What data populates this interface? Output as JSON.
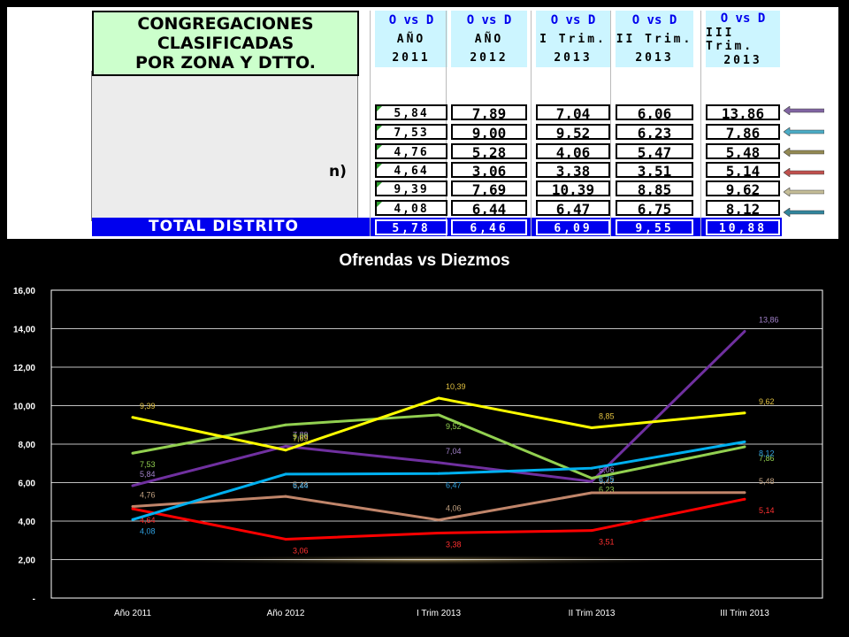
{
  "table": {
    "title_lines": [
      "CONGREGACIONES",
      "CLASIFICADAS",
      "POR ZONA Y DTTO."
    ],
    "row_label_fragment": "n)",
    "total_label": "TOTAL DISTRITO",
    "columns": [
      {
        "ovd": "O vs D",
        "line1": "AÑO",
        "line2": "2011"
      },
      {
        "ovd": "O vs D",
        "line1": "AÑO",
        "line2": "2012"
      },
      {
        "ovd": "O vs D",
        "line1": "I Trim.",
        "line2": "2013"
      },
      {
        "ovd": "O vs D",
        "line1": "II Trim.",
        "line2": "2013"
      },
      {
        "ovd": "O vs D",
        "line1": "III Trim.",
        "line2": "2013"
      }
    ],
    "rows": [
      [
        "5,84",
        "7,89",
        "7,04",
        "6,06",
        "13,86"
      ],
      [
        "7,53",
        "9,00",
        "9,52",
        "6,23",
        "7,86"
      ],
      [
        "4,76",
        "5,28",
        "4,06",
        "5,47",
        "5,48"
      ],
      [
        "4,64",
        "3,06",
        "3,38",
        "3,51",
        "5,14"
      ],
      [
        "9,39",
        "7,69",
        "10,39",
        "8,85",
        "9,62"
      ],
      [
        "4,08",
        "6,44",
        "6,47",
        "6,75",
        "8,12"
      ]
    ],
    "totals": [
      "5,78",
      "6,46",
      "6,09",
      "9,55",
      "10,88"
    ],
    "arrow_colors": [
      "#8064a2",
      "#4bacc6",
      "#938953",
      "#c0504d",
      "#c4bd97",
      "#31859c"
    ]
  },
  "chart_data": {
    "type": "line",
    "title": "Ofrendas vs Diezmos",
    "categories": [
      "Año 2011",
      "Año 2012",
      "I Trim 2013",
      "II Trim 2013",
      "III Trim 2013"
    ],
    "y_ticks": [
      "-",
      "2,00",
      "4,00",
      "6,00",
      "8,00",
      "10,00",
      "12,00",
      "14,00",
      "16,00"
    ],
    "ylim": [
      0,
      16
    ],
    "grid": true,
    "series": [
      {
        "color": "#7030a0",
        "label_color": "#a080c8",
        "values": [
          5.84,
          7.89,
          7.04,
          6.06,
          13.86
        ],
        "labels": [
          "5,84",
          "7,89",
          "7,04",
          "6,06",
          "13,86"
        ]
      },
      {
        "color": "#92d050",
        "label_color": "#92d050",
        "values": [
          7.53,
          9.0,
          9.52,
          6.23,
          7.86
        ],
        "labels": [
          "7,53",
          "9,00",
          "9,52",
          "6,23",
          "7,86"
        ]
      },
      {
        "color": "#c0856a",
        "label_color": "#c0a080",
        "values": [
          4.76,
          5.28,
          4.06,
          5.47,
          5.48
        ],
        "labels": [
          "4,76",
          "5,28",
          "4,06",
          "5,47",
          "5,48"
        ]
      },
      {
        "color": "#ff0000",
        "label_color": "#ff3030",
        "values": [
          4.64,
          3.06,
          3.38,
          3.51,
          5.14
        ],
        "labels": [
          "4,64",
          "3,06",
          "3,38",
          "3,51",
          "5,14"
        ]
      },
      {
        "color": "#ffff00",
        "label_color": "#e0c040",
        "values": [
          9.39,
          7.69,
          10.39,
          8.85,
          9.62
        ],
        "labels": [
          "9,39",
          "7,69",
          "10,39",
          "8,85",
          "9,62"
        ]
      },
      {
        "color": "#00b0f0",
        "label_color": "#30a0e0",
        "values": [
          4.08,
          6.44,
          6.47,
          6.75,
          8.12
        ],
        "labels": [
          "4,08",
          "6,44",
          "6,47",
          "6,75",
          "8,12"
        ]
      }
    ]
  }
}
